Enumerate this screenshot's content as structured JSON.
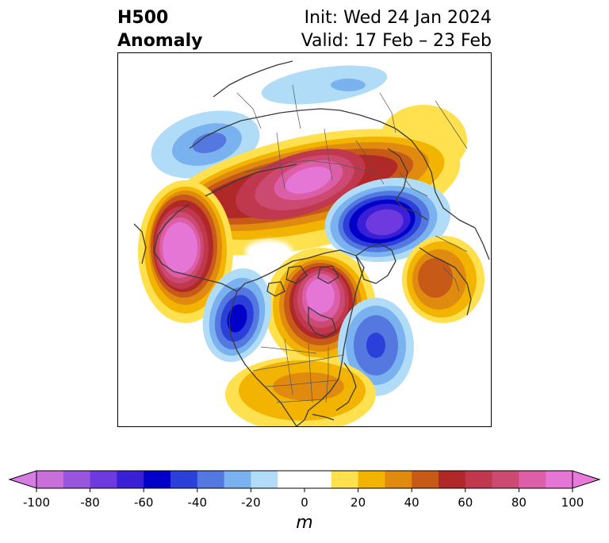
{
  "title": {
    "left_line1": "H500",
    "left_line2": "Anomaly",
    "right_line1": "Init: Wed 24 Jan 2024",
    "right_line2": "Valid: 17 Feb – 23 Feb"
  },
  "colorbar": {
    "unit": "m",
    "min": -100,
    "max": 100,
    "extend": "both",
    "ticks": [
      "-100",
      "-80",
      "-60",
      "-40",
      "-20",
      "0",
      "20",
      "40",
      "60",
      "80",
      "100"
    ],
    "levels": [
      -100,
      -90,
      -80,
      -70,
      -60,
      -50,
      -40,
      -30,
      -20,
      -10,
      10,
      20,
      30,
      40,
      50,
      60,
      70,
      80,
      90,
      100
    ],
    "colors": [
      "#c86fd9",
      "#9a55df",
      "#6e3ae0",
      "#3b1fd6",
      "#0000c8",
      "#2a40d8",
      "#5577e0",
      "#7ab2f0",
      "#b0dcf8",
      "#ffffff",
      "#ffe04e",
      "#f2b400",
      "#e08a10",
      "#c85a18",
      "#b02828",
      "#c0384e",
      "#cc4a72",
      "#dc5ea6",
      "#e676d6"
    ],
    "under_color": "#d67ce2",
    "over_color": "#e87adc"
  }
}
